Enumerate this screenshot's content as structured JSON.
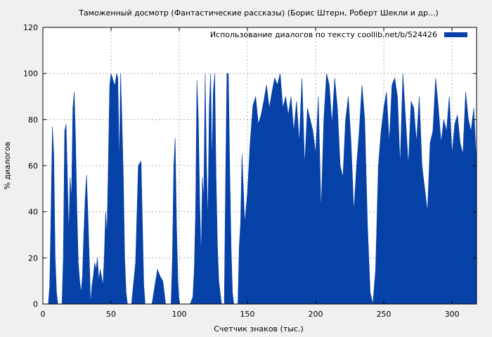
{
  "chart_data": {
    "type": "area",
    "title": "Таможенный досмотр (Фантастические рассказы) (Борис Штерн, Роберт Шекли и др...)",
    "xlabel": "Счетчик знаков (тыс.)",
    "ylabel": "% диалогов",
    "xlim": [
      0,
      318
    ],
    "ylim": [
      0,
      120
    ],
    "x_ticks": [
      0,
      50,
      100,
      150,
      200,
      250,
      300
    ],
    "y_ticks": [
      0,
      20,
      40,
      60,
      80,
      100,
      120
    ],
    "grid": true,
    "legend_position": "top-right",
    "series": [
      {
        "name": "Использование диалогов по тексту  coollib.net/b/524426",
        "color": "#0641a8",
        "x": [
          0,
          2,
          4,
          5,
          6,
          7,
          8,
          9,
          10,
          11,
          12,
          13,
          14,
          15,
          16,
          17,
          18,
          19,
          20,
          21,
          22,
          23,
          24,
          25,
          26,
          27,
          28,
          29,
          30,
          31,
          32,
          33,
          34,
          35,
          36,
          37,
          38,
          39,
          40,
          41,
          42,
          43,
          44,
          45,
          46,
          47,
          48,
          49,
          50,
          51,
          52,
          53,
          54,
          55,
          56,
          57,
          58,
          59,
          60,
          61,
          62,
          63,
          65,
          68,
          70,
          72,
          74,
          75,
          76,
          78,
          80,
          84,
          86,
          88,
          89,
          90,
          91,
          92,
          94,
          95,
          96,
          97,
          98,
          99,
          100,
          101,
          103,
          106,
          108,
          110,
          111,
          112,
          113,
          114,
          115,
          116,
          117,
          118,
          119,
          120,
          121,
          122,
          123,
          124,
          125,
          126,
          127,
          128,
          129,
          130,
          131,
          132,
          133,
          134,
          135,
          136,
          137,
          138,
          139,
          140,
          141,
          142,
          143,
          144,
          145,
          146,
          148,
          150,
          152,
          154,
          156,
          158,
          160,
          162,
          164,
          166,
          168,
          170,
          172,
          174,
          176,
          178,
          180,
          182,
          184,
          186,
          188,
          190,
          192,
          194,
          196,
          198,
          200,
          202,
          204,
          206,
          208,
          210,
          212,
          214,
          216,
          218,
          220,
          222,
          224,
          226,
          228,
          230,
          232,
          234,
          236,
          238,
          240,
          242,
          244,
          246,
          248,
          250,
          252,
          254,
          256,
          258,
          260,
          262,
          264,
          266,
          268,
          270,
          272,
          274,
          276,
          278,
          280,
          282,
          284,
          286,
          288,
          290,
          292,
          294,
          296,
          298,
          300,
          302,
          304,
          306,
          308,
          310,
          312,
          314,
          316,
          318
        ],
        "values": [
          0,
          0,
          0,
          8,
          40,
          77,
          65,
          20,
          5,
          0,
          0,
          0,
          0,
          20,
          75,
          78,
          55,
          30,
          55,
          45,
          85,
          92,
          70,
          40,
          18,
          10,
          5,
          12,
          30,
          45,
          56,
          40,
          20,
          0,
          8,
          12,
          18,
          15,
          20,
          10,
          15,
          12,
          8,
          20,
          40,
          30,
          60,
          95,
          100,
          98,
          96,
          95,
          100,
          98,
          60,
          100,
          80,
          55,
          20,
          5,
          0,
          0,
          0,
          18,
          60,
          62,
          8,
          0,
          0,
          0,
          0,
          15,
          12,
          10,
          5,
          0,
          0,
          0,
          0,
          20,
          60,
          72,
          35,
          10,
          0,
          0,
          0,
          0,
          0,
          3,
          15,
          40,
          97,
          80,
          45,
          20,
          55,
          45,
          100,
          60,
          35,
          85,
          100,
          60,
          92,
          100,
          55,
          25,
          10,
          5,
          0,
          0,
          0,
          55,
          100,
          100,
          60,
          25,
          5,
          0,
          0,
          0,
          0,
          25,
          35,
          65,
          35,
          48,
          70,
          86,
          90,
          78,
          82,
          88,
          95,
          85,
          92,
          98,
          95,
          100,
          85,
          90,
          82,
          90,
          75,
          88,
          70,
          98,
          60,
          85,
          80,
          75,
          65,
          90,
          40,
          80,
          100,
          95,
          78,
          98,
          85,
          60,
          55,
          80,
          90,
          70,
          40,
          60,
          75,
          95,
          80,
          35,
          5,
          0,
          15,
          60,
          75,
          85,
          92,
          70,
          95,
          98,
          90,
          60,
          100,
          80,
          60,
          88,
          85,
          70,
          90,
          60,
          50,
          40,
          70,
          75,
          98,
          85,
          70,
          80,
          75,
          90,
          65,
          78,
          82,
          70,
          65,
          92,
          80,
          75,
          85,
          60
        ]
      }
    ]
  }
}
